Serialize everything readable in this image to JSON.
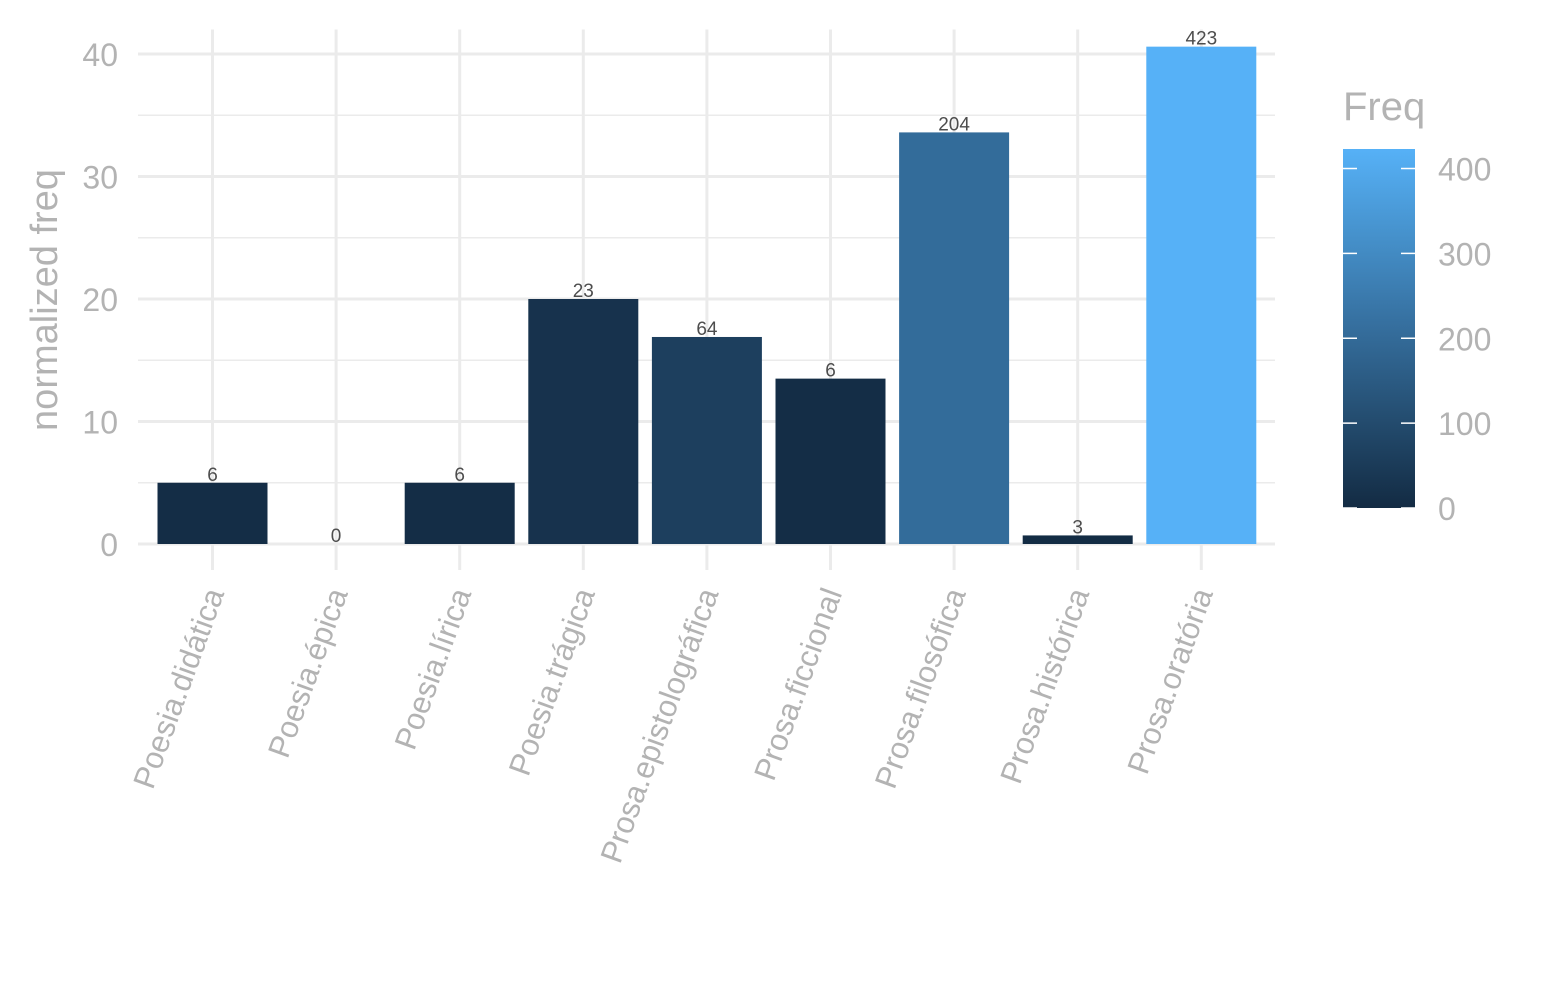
{
  "chart_data": {
    "type": "bar",
    "categories": [
      "Poesia.didática",
      "Poesia.épica",
      "Poesia.lírica",
      "Poesia.trágica",
      "Prosa.epistolográfica",
      "Prosa.ficcional",
      "Prosa.filosófica",
      "Prosa.histórica",
      "Prosa.oratória"
    ],
    "values": [
      5.0,
      0.0,
      5.0,
      20.0,
      16.9,
      13.5,
      33.6,
      0.7,
      40.6
    ],
    "data_labels": [
      "6",
      "0",
      "6",
      "23",
      "64",
      "6",
      "204",
      "3",
      "423"
    ],
    "fill_values": [
      6,
      0,
      6,
      23,
      64,
      6,
      204,
      3,
      423
    ],
    "ylabel": "normalized freq",
    "xlabel": "",
    "ylim": [
      0,
      42
    ],
    "yticks": [
      0,
      10,
      20,
      30,
      40
    ],
    "grid": true,
    "legend": {
      "title": "Freq",
      "type": "colorbar",
      "position": "right",
      "range": [
        0,
        423
      ],
      "ticks": [
        0,
        100,
        200,
        300,
        400
      ],
      "color_low": "#132B43",
      "color_high": "#56B1F7"
    }
  }
}
